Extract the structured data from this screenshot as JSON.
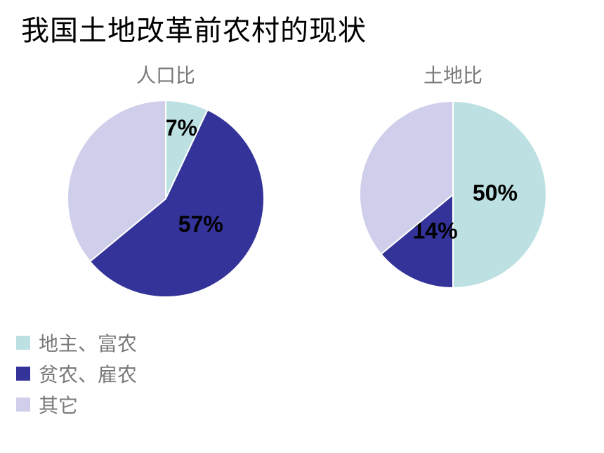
{
  "title": "我国土地改革前农村的现状",
  "colors": {
    "landlord": "#bde1e3",
    "poor": "#333399",
    "other": "#cfcfec"
  },
  "legend": [
    {
      "label": "地主、富农",
      "color": "#bde1e3"
    },
    {
      "label": "贫农、雇农",
      "color": "#333399"
    },
    {
      "label": "其它",
      "color": "#cfcfec"
    }
  ],
  "chart_data": [
    {
      "type": "pie",
      "title": "人口比",
      "categories": [
        "地主、富农",
        "贫农、雇农",
        "其它"
      ],
      "values": [
        7,
        57,
        36
      ],
      "labels": [
        "7%",
        "57%",
        ""
      ]
    },
    {
      "type": "pie",
      "title": "土地比",
      "categories": [
        "地主、富农",
        "贫农、雇农",
        "其它"
      ],
      "values": [
        50,
        14,
        36
      ],
      "labels": [
        "50%",
        "14%",
        ""
      ]
    }
  ]
}
